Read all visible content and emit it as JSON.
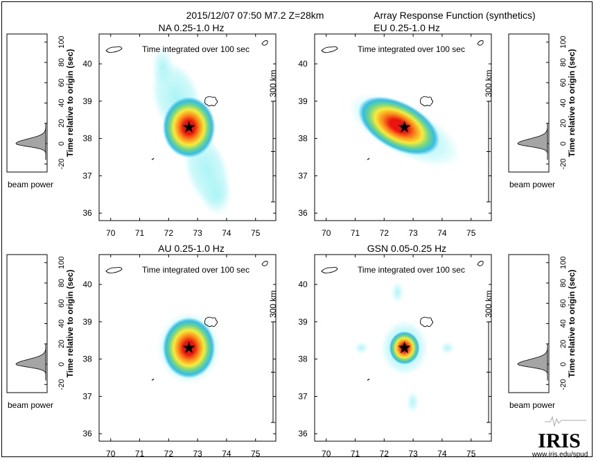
{
  "header": {
    "event": "2015/12/07 07:50  M7.2  Z=28km",
    "subtitle": "Array Response Function (synthetics)"
  },
  "common": {
    "panel_note": "Time integrated over 100 sec",
    "scale_bar_label": "300 km",
    "beam_ylabel": "Time relative to origin (sec)",
    "beam_xlabel": "beam power",
    "beam_ticks": [
      "-20",
      "0",
      "20",
      "40",
      "60",
      "80",
      "100"
    ],
    "x_ticks": [
      "70",
      "71",
      "72",
      "73",
      "74",
      "75"
    ],
    "y_ticks": [
      "36",
      "37",
      "38",
      "39",
      "40"
    ]
  },
  "colors": {
    "cyan": "#a8f4f6",
    "blue": "#33bde6",
    "green": "#6fd48a",
    "yellow": "#f7ec3a",
    "orange": "#fb8a1c",
    "red": "#e8150f",
    "beam_fill": "#a5a5a5"
  },
  "logo": {
    "name": "IRIS",
    "url": "www.iris.edu/spud"
  },
  "chart_data": [
    {
      "type": "heatmap",
      "title": "NA  0.25-1.0 Hz",
      "xlim": [
        69.6,
        75.7
      ],
      "ylim": [
        35.8,
        40.8
      ],
      "peak": [
        72.7,
        38.3
      ],
      "star": [
        72.7,
        38.3
      ],
      "pattern": "elongated NW-SE with weak side lobes",
      "side_lobe_range_lat": [
        36.2,
        40.4
      ]
    },
    {
      "type": "heatmap",
      "title": "EU  0.25-1.0 Hz",
      "xlim": [
        69.6,
        75.7
      ],
      "ylim": [
        35.8,
        40.8
      ],
      "peak": [
        72.7,
        38.3
      ],
      "star": [
        72.7,
        38.3
      ],
      "pattern": "elongated NW-SE ellipse"
    },
    {
      "type": "heatmap",
      "title": "AU  0.25-1.0 Hz",
      "xlim": [
        69.6,
        75.7
      ],
      "ylim": [
        35.8,
        40.8
      ],
      "peak": [
        72.7,
        38.3
      ],
      "star": [
        72.7,
        38.3
      ],
      "pattern": "compact round peak"
    },
    {
      "type": "heatmap",
      "title": "GSN  0.05-0.25 Hz",
      "xlim": [
        69.6,
        75.7
      ],
      "ylim": [
        35.8,
        40.8
      ],
      "peak": [
        72.7,
        38.3
      ],
      "star": [
        72.7,
        38.3
      ],
      "pattern": "compact peak with four faint side lobes"
    }
  ]
}
